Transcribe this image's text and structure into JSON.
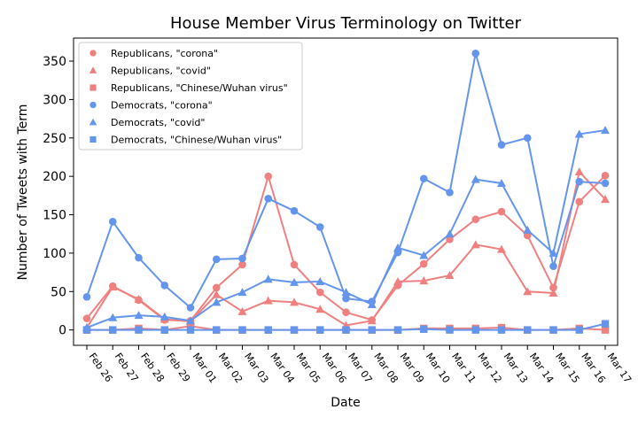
{
  "chart_data": {
    "type": "line",
    "title": "House Member Virus Terminology on Twitter",
    "xlabel": "Date",
    "ylabel": "Number of Tweets with Term",
    "categories": [
      "Feb 26",
      "Feb 27",
      "Feb 28",
      "Feb 29",
      "Mar 01",
      "Mar 02",
      "Mar 03",
      "Mar 04",
      "Mar 05",
      "Mar 06",
      "Mar 07",
      "Mar 08",
      "Mar 09",
      "Mar 10",
      "Mar 11",
      "Mar 12",
      "Mar 13",
      "Mar 14",
      "Mar 15",
      "Mar 16",
      "Mar 17"
    ],
    "ylim": [
      -20,
      380
    ],
    "yticks": [
      0,
      50,
      100,
      150,
      200,
      250,
      300,
      350
    ],
    "grid": false,
    "legend_position": "top-left",
    "series": [
      {
        "name": "Republicans, \"corona\"",
        "color": "#f08080",
        "marker": "circle",
        "values": [
          15,
          57,
          39,
          13,
          12,
          55,
          85,
          200,
          85,
          49,
          23,
          13,
          58,
          86,
          118,
          144,
          154,
          123,
          55,
          167,
          201
        ]
      },
      {
        "name": "Republicans, \"covid\"",
        "color": "#f08080",
        "marker": "triangle",
        "values": [
          3,
          56,
          40,
          14,
          11,
          46,
          24,
          38,
          36,
          27,
          6,
          12,
          63,
          64,
          71,
          111,
          105,
          50,
          48,
          206,
          170
        ]
      },
      {
        "name": "Republicans, \"Chinese/Wuhan virus\"",
        "color": "#f08080",
        "marker": "square",
        "values": [
          0,
          0,
          2,
          0,
          5,
          0,
          0,
          0,
          0,
          0,
          0,
          0,
          0,
          2,
          2,
          2,
          3,
          0,
          0,
          2,
          0
        ]
      },
      {
        "name": "Democrats, \"corona\"",
        "color": "#6495ed",
        "marker": "circle",
        "values": [
          43,
          141,
          94,
          58,
          29,
          92,
          93,
          171,
          155,
          134,
          41,
          37,
          101,
          197,
          179,
          360,
          241,
          250,
          83,
          193,
          191
        ]
      },
      {
        "name": "Democrats, \"covid\"",
        "color": "#6495ed",
        "marker": "triangle",
        "values": [
          3,
          16,
          19,
          17,
          12,
          36,
          49,
          66,
          62,
          63,
          49,
          33,
          107,
          97,
          125,
          196,
          191,
          130,
          100,
          255,
          260
        ]
      },
      {
        "name": "Democrats, \"Chinese/Wuhan virus\"",
        "color": "#6495ed",
        "marker": "square",
        "values": [
          0,
          0,
          0,
          0,
          0,
          0,
          0,
          0,
          0,
          0,
          0,
          0,
          0,
          1,
          0,
          0,
          0,
          0,
          0,
          0,
          8
        ]
      }
    ]
  }
}
